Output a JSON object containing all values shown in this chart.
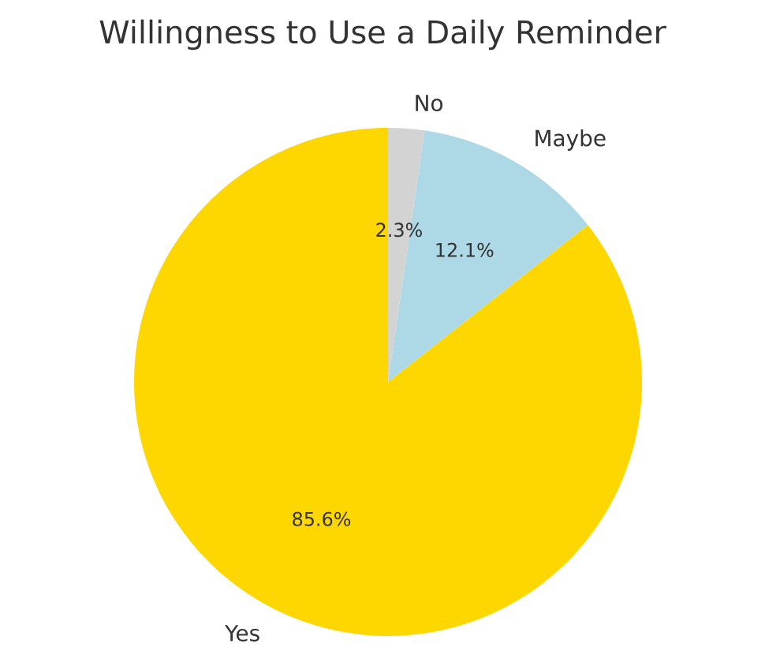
{
  "chart_data": {
    "type": "pie",
    "title": "Willingness to Use a Daily Reminder",
    "categories": [
      "Yes",
      "Maybe",
      "No"
    ],
    "values": [
      85.6,
      12.1,
      2.3
    ],
    "colors": [
      "#ffd700",
      "#add8e6",
      "#d3d3d3"
    ],
    "value_labels": [
      "85.6%",
      "12.1%",
      "2.3%"
    ]
  }
}
